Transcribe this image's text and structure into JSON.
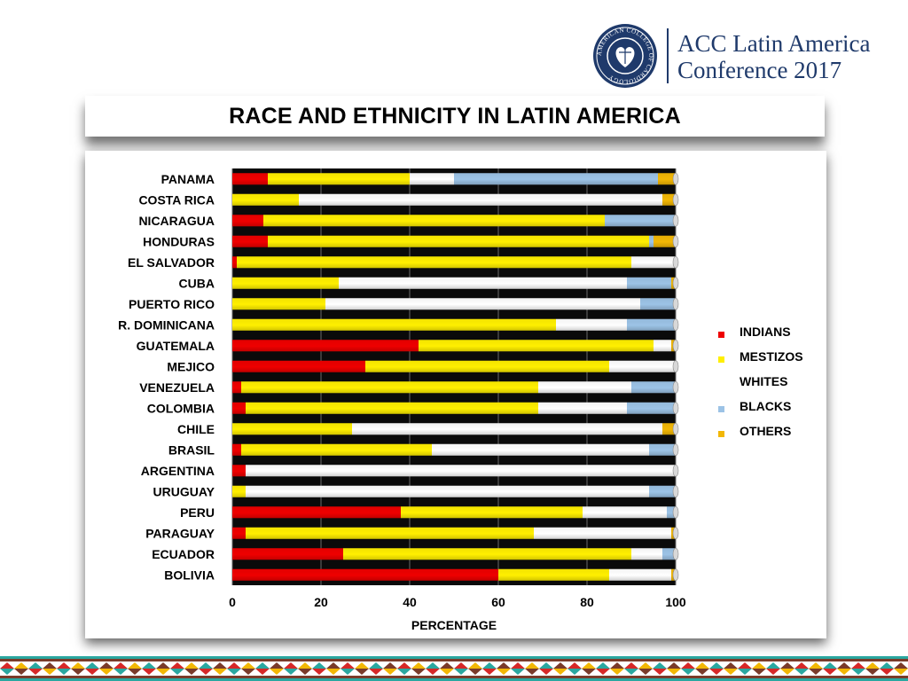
{
  "header": {
    "seal_text": "AMERICAN COLLEGE OF CARDIOLOGY",
    "conference_line1": "ACC Latin America",
    "conference_line2": "Conference 2017"
  },
  "colors": {
    "INDIANS": "#ee0000",
    "MESTIZOS": "#ffef00",
    "WHITES": "#ffffff",
    "BLACKS": "#9cc3e6",
    "OTHERS": "#f2b705",
    "brand": "#1f3a6b"
  },
  "chart_data": {
    "type": "bar",
    "orientation": "horizontal",
    "stacked": true,
    "title": "RACE AND ETHNICITY IN LATIN AMERICA",
    "xlabel": "PERCENTAGE",
    "ylabel": "",
    "xlim": [
      0,
      100
    ],
    "xticks": [
      0,
      20,
      40,
      60,
      80,
      100
    ],
    "grid": true,
    "legend_position": "right",
    "categories": [
      "PANAMA",
      "COSTA RICA",
      "NICARAGUA",
      "HONDURAS",
      "EL SALVADOR",
      "CUBA",
      "PUERTO RICO",
      "R. DOMINICANA",
      "GUATEMALA",
      "MEJICO",
      "VENEZUELA",
      "COLOMBIA",
      "CHILE",
      "BRASIL",
      "ARGENTINA",
      "URUGUAY",
      "PERU",
      "PARAGUAY",
      "ECUADOR",
      "BOLIVIA"
    ],
    "series": [
      {
        "name": "INDIANS",
        "values": [
          8,
          0,
          7,
          8,
          1,
          0,
          0,
          0,
          42,
          30,
          2,
          3,
          0,
          2,
          3,
          0,
          38,
          3,
          25,
          60
        ]
      },
      {
        "name": "MESTIZOS",
        "values": [
          32,
          15,
          77,
          86,
          89,
          24,
          21,
          73,
          53,
          55,
          67,
          66,
          27,
          43,
          0,
          3,
          41,
          65,
          65,
          25
        ]
      },
      {
        "name": "WHITES",
        "values": [
          10,
          82,
          0,
          0,
          10,
          65,
          71,
          16,
          4,
          15,
          21,
          20,
          70,
          49,
          97,
          91,
          19,
          31,
          7,
          14
        ]
      },
      {
        "name": "BLACKS",
        "values": [
          46,
          0,
          16,
          1,
          0,
          10,
          8,
          11,
          0,
          0,
          10,
          11,
          0,
          6,
          0,
          6,
          2,
          0,
          3,
          0
        ]
      },
      {
        "name": "OTHERS",
        "values": [
          4,
          3,
          0,
          5,
          0,
          1,
          0,
          0,
          1,
          0,
          0,
          0,
          3,
          0,
          0,
          0,
          0,
          1,
          0,
          1
        ]
      }
    ]
  }
}
